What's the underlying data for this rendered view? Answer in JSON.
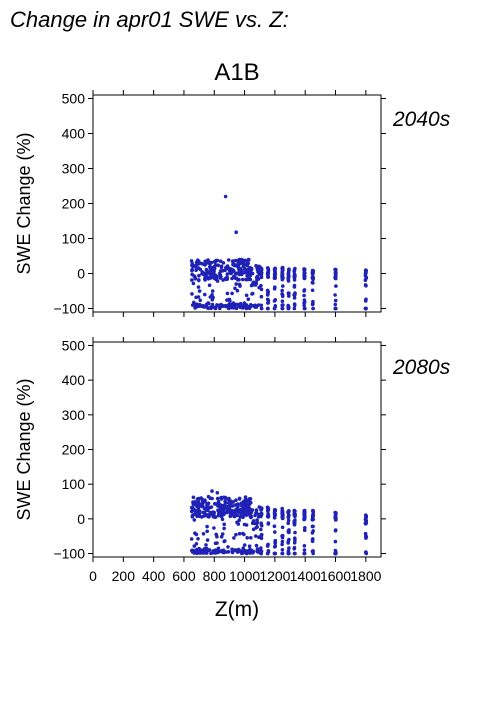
{
  "figure": {
    "title": "Change in apr01 SWE vs. Z:",
    "scenario": "A1B",
    "xlabel": "Z(m)"
  },
  "colors": {
    "points": "#1f22b5",
    "period_label": "#1f22b5",
    "axis": "#000000"
  },
  "chart_data": [
    {
      "type": "scatter",
      "period_label": "2040s",
      "ylabel": "SWE Change (%)",
      "xlim": [
        0,
        1900
      ],
      "ylim": [
        -110,
        510
      ],
      "yticks": [
        -100,
        0,
        100,
        200,
        300,
        400,
        500
      ],
      "xticks": [
        0,
        200,
        400,
        600,
        800,
        1000,
        1200,
        1400,
        1600,
        1800
      ],
      "grid": false,
      "outliers": [
        [
          875,
          220
        ],
        [
          945,
          118
        ]
      ],
      "clusters": [
        {
          "x": [
            650,
            1050
          ],
          "y": [
            -100,
            40
          ],
          "n": 320
        },
        {
          "x": [
            1050,
            1100
          ],
          "y": [
            -100,
            22
          ],
          "n": 30
        }
      ],
      "columns": [
        {
          "x": 1110,
          "y": [
            -100,
            18
          ]
        },
        {
          "x": 1155,
          "y": [
            -85,
            18
          ]
        },
        {
          "x": 1200,
          "y": [
            -100,
            15
          ]
        },
        {
          "x": 1250,
          "y": [
            -100,
            18
          ]
        },
        {
          "x": 1290,
          "y": [
            -100,
            18
          ]
        },
        {
          "x": 1330,
          "y": [
            -100,
            15
          ]
        },
        {
          "x": 1395,
          "y": [
            -100,
            15
          ]
        },
        {
          "x": 1450,
          "y": [
            -100,
            12
          ]
        },
        {
          "x": 1600,
          "y": [
            -100,
            15
          ]
        },
        {
          "x": 1800,
          "y": [
            -100,
            10
          ]
        }
      ]
    },
    {
      "type": "scatter",
      "period_label": "2080s",
      "ylabel": "SWE Change (%)",
      "xlim": [
        0,
        1900
      ],
      "ylim": [
        -110,
        510
      ],
      "yticks": [
        -100,
        0,
        100,
        200,
        300,
        400,
        500
      ],
      "xticks": [
        0,
        200,
        400,
        600,
        800,
        1000,
        1200,
        1400,
        1600,
        1800
      ],
      "xticklabels": [
        "0",
        "200",
        "400",
        "600",
        "800",
        "1000",
        "1200",
        "1400",
        "1600",
        "1800"
      ],
      "grid": false,
      "outliers": [
        [
          785,
          80
        ],
        [
          820,
          75
        ]
      ],
      "clusters": [
        {
          "x": [
            650,
            1050
          ],
          "y": [
            -100,
            65
          ],
          "n": 360
        },
        {
          "x": [
            1050,
            1100
          ],
          "y": [
            -100,
            35
          ],
          "n": 30
        }
      ],
      "columns": [
        {
          "x": 1110,
          "y": [
            -100,
            35
          ]
        },
        {
          "x": 1155,
          "y": [
            -100,
            35
          ]
        },
        {
          "x": 1200,
          "y": [
            -100,
            30
          ]
        },
        {
          "x": 1250,
          "y": [
            -100,
            30
          ]
        },
        {
          "x": 1290,
          "y": [
            -100,
            30
          ]
        },
        {
          "x": 1330,
          "y": [
            -100,
            28
          ]
        },
        {
          "x": 1395,
          "y": [
            -100,
            28
          ]
        },
        {
          "x": 1450,
          "y": [
            -100,
            25
          ]
        },
        {
          "x": 1600,
          "y": [
            -100,
            25
          ]
        },
        {
          "x": 1800,
          "y": [
            -100,
            15
          ]
        }
      ]
    }
  ]
}
